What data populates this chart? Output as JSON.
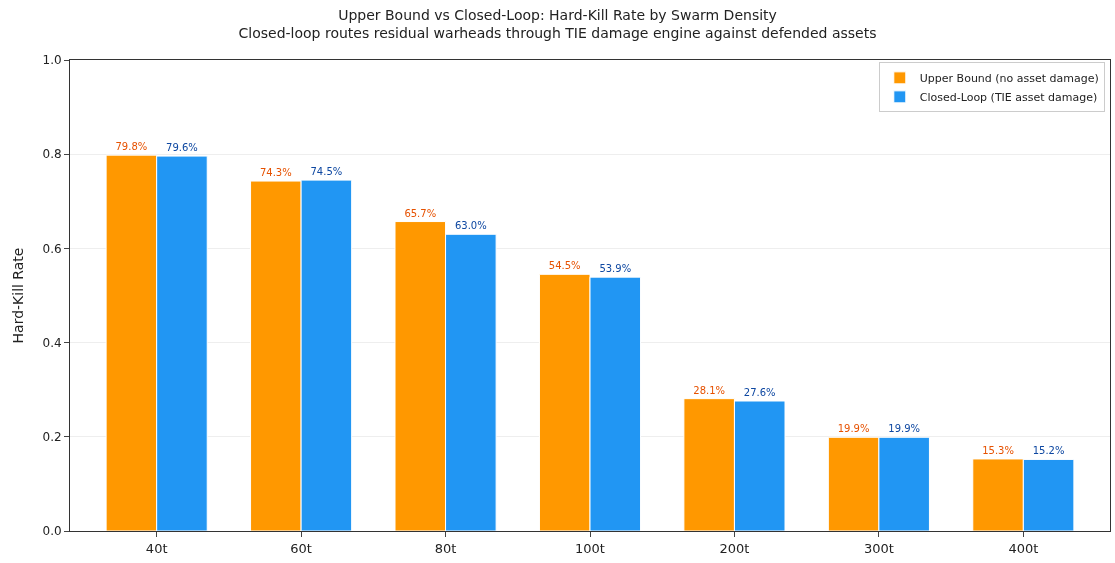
{
  "chart_data": {
    "type": "bar",
    "title": "Upper Bound vs Closed-Loop: Hard-Kill Rate by Swarm Density",
    "subtitle": "Closed-loop routes residual warheads through TIE damage engine against defended assets",
    "ylabel": "Hard-Kill Rate",
    "categories": [
      "40t",
      "60t",
      "80t",
      "100t",
      "200t",
      "300t",
      "400t"
    ],
    "series": [
      {
        "name": "Upper Bound (no asset damage)",
        "color": "#ff9800",
        "values": [
          0.798,
          0.743,
          0.657,
          0.545,
          0.281,
          0.199,
          0.153
        ],
        "value_labels": [
          "79.8%",
          "74.3%",
          "65.7%",
          "54.5%",
          "28.1%",
          "19.9%",
          "15.3%"
        ]
      },
      {
        "name": "Closed-Loop (TIE asset damage)",
        "color": "#2196f3",
        "values": [
          0.796,
          0.745,
          0.63,
          0.539,
          0.276,
          0.199,
          0.152
        ],
        "value_labels": [
          "79.6%",
          "74.5%",
          "63.0%",
          "53.9%",
          "27.6%",
          "19.9%",
          "15.2%"
        ]
      }
    ],
    "ylim": [
      0,
      1
    ],
    "yticks": [
      {
        "value": 0,
        "label": "0.0"
      },
      {
        "value": 0.2,
        "label": "0.2"
      },
      {
        "value": 0.4,
        "label": "0.4"
      },
      {
        "value": 0.6,
        "label": "0.6"
      },
      {
        "value": 0.8,
        "label": "0.8"
      },
      {
        "value": 1,
        "label": "1.0"
      }
    ],
    "grid": "y",
    "legend": "top right"
  }
}
